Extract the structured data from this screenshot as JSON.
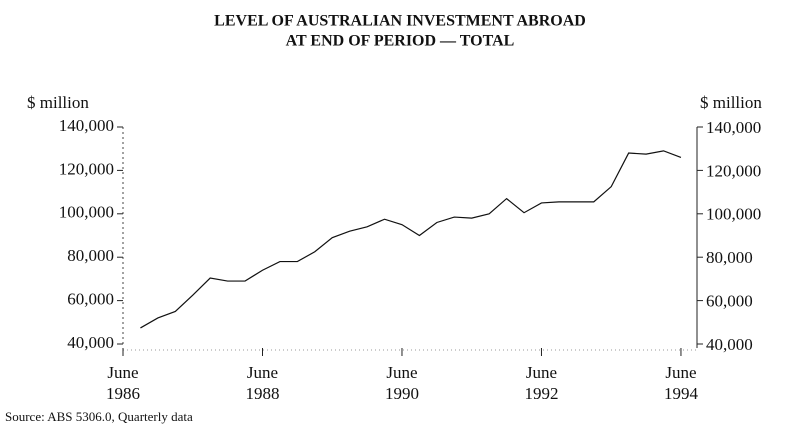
{
  "chart_data": {
    "type": "line",
    "title": "LEVEL OF AUSTRALIAN INVESTMENT ABROAD",
    "subtitle": "AT END OF PERIOD — TOTAL",
    "y_label": "$ million",
    "y2_label": "$ million",
    "source": "Source: ABS 5306.0, Quarterly data",
    "x": [
      1986.75,
      1987,
      1987.25,
      1987.5,
      1987.75,
      1988,
      1988.25,
      1988.5,
      1988.75,
      1989,
      1989.25,
      1989.5,
      1989.75,
      1990,
      1990.25,
      1990.5,
      1990.75,
      1991,
      1991.25,
      1991.5,
      1991.75,
      1992,
      1992.25,
      1992.5,
      1992.75,
      1993,
      1993.25,
      1993.5,
      1993.75,
      1994,
      1994.25,
      1994.5
    ],
    "series": [
      {
        "name": "Total",
        "color": "#111111",
        "values": [
          47400,
          52000,
          55000,
          62500,
          70400,
          69000,
          69000,
          74000,
          78000,
          78000,
          82500,
          89000,
          92000,
          94000,
          97500,
          95000,
          90000,
          96000,
          98500,
          98000,
          100000,
          107000,
          100500,
          105000,
          105500,
          105500,
          105500,
          112500,
          128000,
          127500,
          129000,
          126000
        ]
      }
    ],
    "xlim": [
      1986.5,
      1994.73
    ],
    "xticks": [
      {
        "value": 1986.5,
        "label": "June 1986"
      },
      {
        "value": 1988.5,
        "label": "June 1988"
      },
      {
        "value": 1990.5,
        "label": "June 1990"
      },
      {
        "value": 1992.5,
        "label": "June 1992"
      },
      {
        "value": 1994.5,
        "label": "June 1994"
      }
    ],
    "ylim": [
      40000,
      140000
    ],
    "yticks": [
      {
        "value": 40000,
        "label": "40,000"
      },
      {
        "value": 60000,
        "label": "60,000"
      },
      {
        "value": 80000,
        "label": "80,000"
      },
      {
        "value": 100000,
        "label": "100,000"
      },
      {
        "value": 120000,
        "label": "120,000"
      },
      {
        "value": 140000,
        "label": "140,000"
      }
    ],
    "y2lim": [
      40000,
      140000
    ],
    "y2ticks": [
      {
        "value": 40000,
        "label": "40,000"
      },
      {
        "value": 60000,
        "label": "60,000"
      },
      {
        "value": 80000,
        "label": "80,000"
      },
      {
        "value": 100000,
        "label": "100,000"
      },
      {
        "value": 120000,
        "label": "120,000"
      },
      {
        "value": 140000,
        "label": "140,000"
      }
    ],
    "grid": false
  }
}
